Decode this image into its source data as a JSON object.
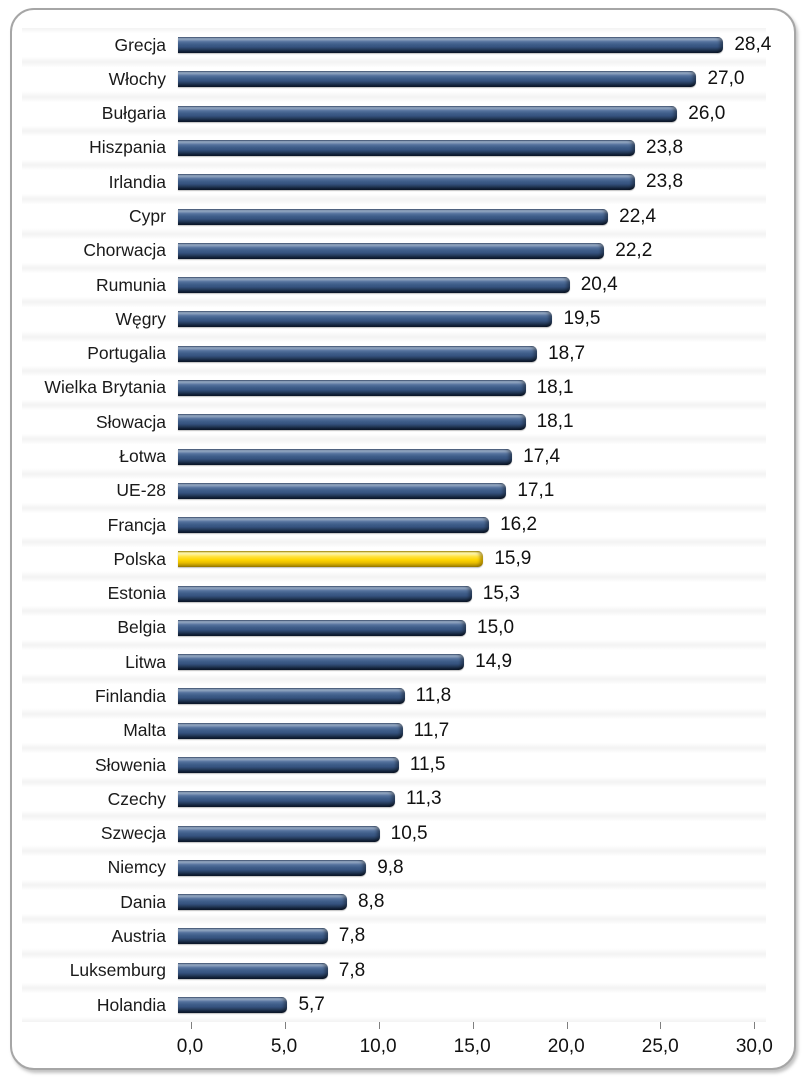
{
  "chart_data": {
    "type": "bar",
    "orientation": "horizontal",
    "title": "",
    "xlabel": "",
    "ylabel": "",
    "xlim": [
      0,
      30
    ],
    "grid": true,
    "legend": "none",
    "bar_color": "#3f5e8a",
    "highlight_color": "#fed500",
    "highlight_category": "Polska",
    "decimal_separator": ",",
    "categories": [
      "Grecja",
      "Włochy",
      "Bułgaria",
      "Hiszpania",
      "Irlandia",
      "Cypr",
      "Chorwacja",
      "Rumunia",
      "Węgry",
      "Portugalia",
      "Wielka Brytania",
      "Słowacja",
      "Łotwa",
      "UE-28",
      "Francja",
      "Polska",
      "Estonia",
      "Belgia",
      "Litwa",
      "Finlandia",
      "Malta",
      "Słowenia",
      "Czechy",
      "Szwecja",
      "Niemcy",
      "Dania",
      "Austria",
      "Luksemburg",
      "Holandia"
    ],
    "values": [
      28.4,
      27.0,
      26.0,
      23.8,
      23.8,
      22.4,
      22.2,
      20.4,
      19.5,
      18.7,
      18.1,
      18.1,
      17.4,
      17.1,
      16.2,
      15.9,
      15.3,
      15.0,
      14.9,
      11.8,
      11.7,
      11.5,
      11.3,
      10.5,
      9.8,
      8.8,
      7.8,
      7.8,
      5.7
    ],
    "value_labels": [
      "28,4",
      "27,0",
      "26,0",
      "23,8",
      "23,8",
      "22,4",
      "22,2",
      "20,4",
      "19,5",
      "18,7",
      "18,1",
      "18,1",
      "17,4",
      "17,1",
      "16,2",
      "15,9",
      "15,3",
      "15,0",
      "14,9",
      "11,8",
      "11,7",
      "11,5",
      "11,3",
      "10,5",
      "9,8",
      "8,8",
      "7,8",
      "7,8",
      "5,7"
    ],
    "x_tick_values": [
      0,
      5,
      10,
      15,
      20,
      25,
      30
    ],
    "x_tick_labels": [
      "0,0",
      "5,0",
      "10,0",
      "15,0",
      "20,0",
      "25,0",
      "30,0"
    ],
    "axis_max_render": 30.62
  }
}
